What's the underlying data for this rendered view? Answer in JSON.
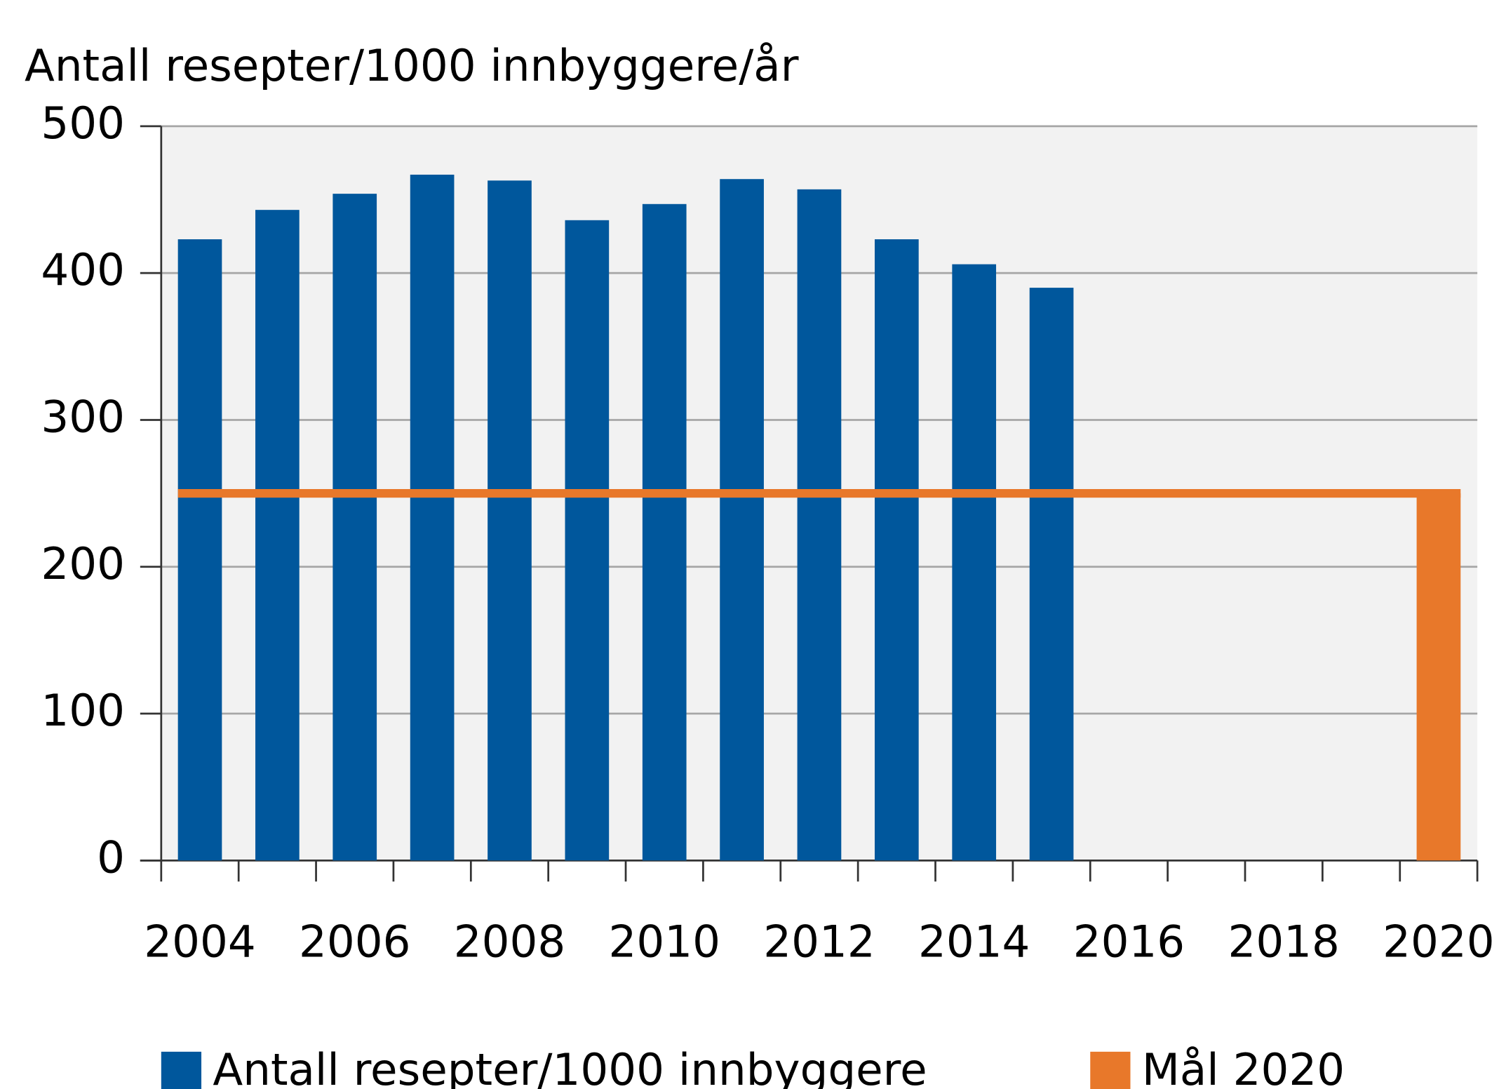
{
  "chart_data": {
    "type": "bar",
    "ylabel": "Antall resepter/1000 innbyggere/år",
    "categories": [
      "2004",
      null,
      "2006",
      null,
      "2008",
      null,
      "2010",
      null,
      "2012",
      null,
      "2014",
      null,
      "2016",
      null,
      "2018",
      null,
      "2020"
    ],
    "series": [
      {
        "name": "Antall resepter/1000 innbyggere",
        "color": "#00579c",
        "values": [
          423,
          443,
          454,
          467,
          463,
          436,
          447,
          464,
          457,
          423,
          406,
          390,
          null,
          null,
          null,
          null,
          null
        ]
      },
      {
        "name": "Mål 2020",
        "color": "#e8782a",
        "values": [
          null,
          null,
          null,
          null,
          null,
          null,
          null,
          null,
          null,
          null,
          null,
          null,
          null,
          null,
          null,
          null,
          250
        ]
      }
    ],
    "ylim": [
      0,
      500
    ],
    "yticks": [
      0,
      100,
      200,
      300,
      400,
      500
    ],
    "grid": true
  }
}
